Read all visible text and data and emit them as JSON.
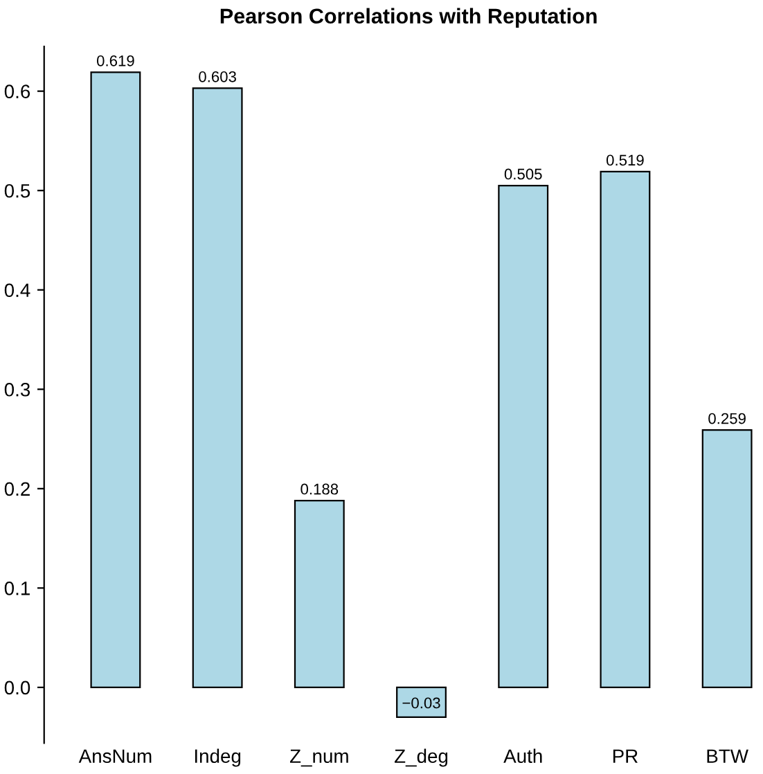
{
  "chart_data": {
    "type": "bar",
    "title": "Pearson Correlations with Reputation",
    "categories": [
      "AnsNum",
      "Indeg",
      "Z_num",
      "Z_deg",
      "Auth",
      "PR",
      "BTW"
    ],
    "values": [
      0.619,
      0.603,
      0.188,
      -0.03,
      0.505,
      0.519,
      0.259
    ],
    "value_labels": [
      "0.619",
      "0.603",
      "0.188",
      "−0.03",
      "0.505",
      "0.519",
      "0.259"
    ],
    "color": "#add8e6",
    "ylim": [
      -0.056,
      0.645
    ],
    "yticks": [
      {
        "value": 0,
        "label": "0.0"
      },
      0.1,
      0.2,
      0.3,
      0.4,
      0.5,
      0.6
    ],
    "grid": false,
    "legend": false
  }
}
